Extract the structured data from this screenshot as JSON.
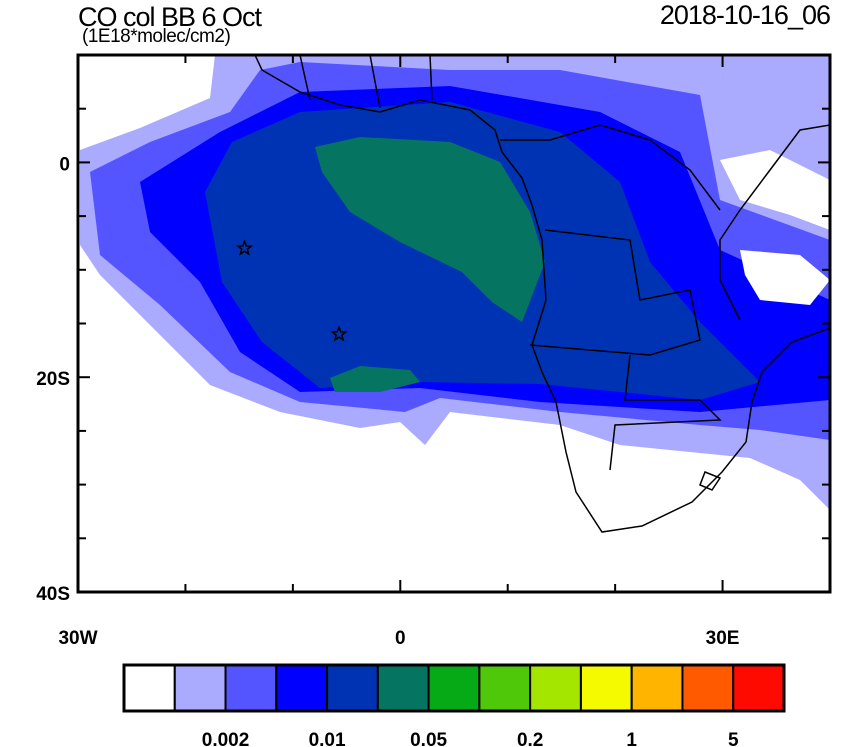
{
  "header": {
    "title": "CO col BB 6 Oct",
    "units": "(1E18*molec/cm2)",
    "date": "2018-10-16_06"
  },
  "chart_data": {
    "type": "heatmap",
    "subtype": "filled-contour map",
    "title": "CO col BB 6 Oct",
    "units": "(1E18*molec/cm2)",
    "valid_time": "2018-10-16_06",
    "lon_range": [
      -30,
      40
    ],
    "lat_range": [
      -40,
      10
    ],
    "x_ticks": [
      {
        "value": -30,
        "label": "30W"
      },
      {
        "value": 0,
        "label": "0"
      },
      {
        "value": 30,
        "label": "30E"
      }
    ],
    "y_ticks": [
      {
        "value": 0,
        "label": "0"
      },
      {
        "value": -20,
        "label": "20S"
      },
      {
        "value": -40,
        "label": "40S"
      }
    ],
    "colorbar": {
      "colors": [
        "#ffffff",
        "#aaaaff",
        "#5555ff",
        "#0000ff",
        "#0033b3",
        "#057562",
        "#05aa16",
        "#50c80a",
        "#a5e600",
        "#f5fa00",
        "#ffb400",
        "#ff5a00",
        "#ff0a00"
      ],
      "labels": [
        "0.002",
        "0.01",
        "0.05",
        "0.2",
        "1",
        "5"
      ]
    },
    "markers": [
      {
        "symbol": "star",
        "lon": -14.5,
        "lat": -8
      },
      {
        "symbol": "star",
        "lon": -5.7,
        "lat": -16
      }
    ]
  }
}
